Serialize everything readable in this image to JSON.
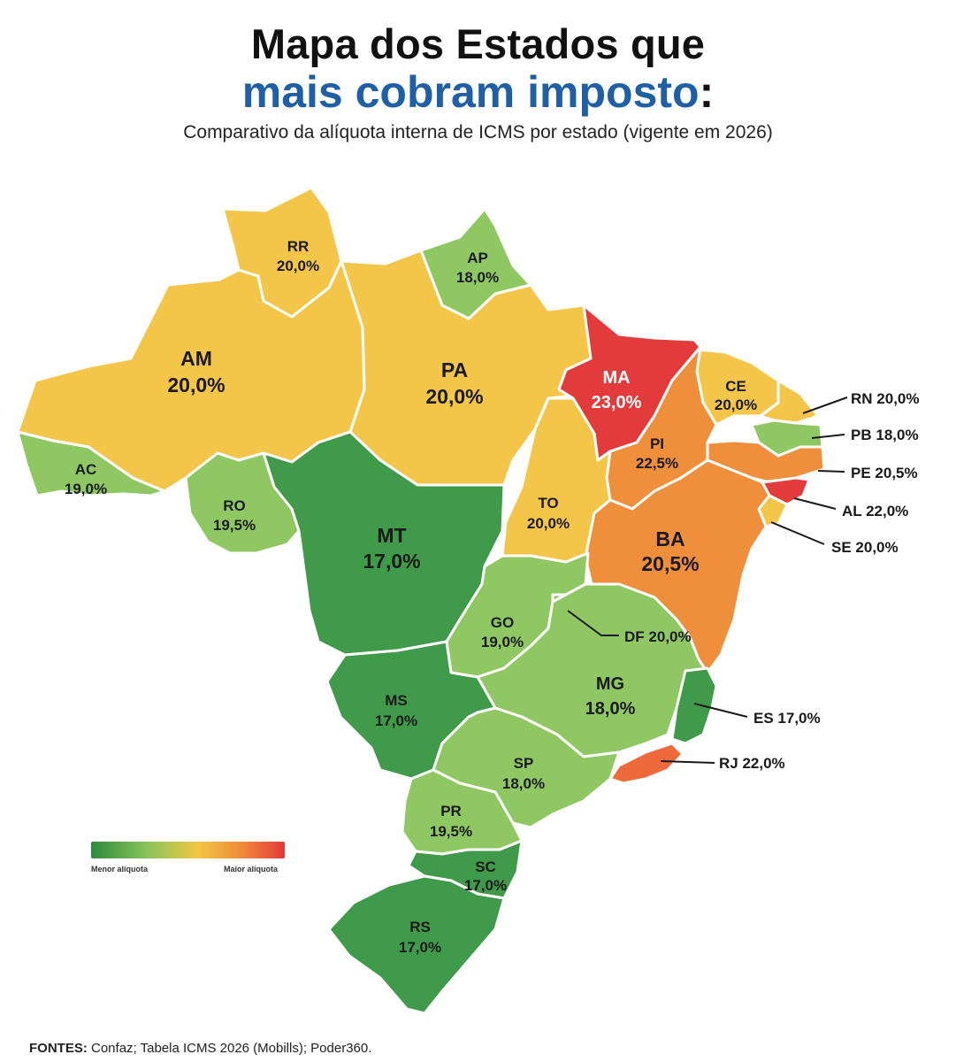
{
  "header": {
    "title_line1": "Mapa dos Estados que",
    "title_line2": "mais cobram imposto",
    "title_colon": ":",
    "subtitle": "Comparativo da alíquota interna de ICMS por estado (vigente em 2026)"
  },
  "colors": {
    "green_dark": "#3f9a49",
    "green_light": "#8fc862",
    "yellow": "#f3c64a",
    "orange": "#ef8e3b",
    "red": "#e33b3b",
    "title_blue": "#1f5fa6"
  },
  "states": [
    {
      "code": "AM",
      "rate": "20,0%"
    },
    {
      "code": "RR",
      "rate": "20,0%"
    },
    {
      "code": "AP",
      "rate": "18,0%"
    },
    {
      "code": "PA",
      "rate": "20,0%"
    },
    {
      "code": "MA",
      "rate": "23,0%"
    },
    {
      "code": "CE",
      "rate": "20,0%"
    },
    {
      "code": "PI",
      "rate": "22,5%"
    },
    {
      "code": "AC",
      "rate": "19,0%"
    },
    {
      "code": "RO",
      "rate": "19,5%"
    },
    {
      "code": "MT",
      "rate": "17,0%"
    },
    {
      "code": "TO",
      "rate": "20,0%"
    },
    {
      "code": "BA",
      "rate": "20,5%"
    },
    {
      "code": "GO",
      "rate": "19,0%"
    },
    {
      "code": "MG",
      "rate": "18,0%"
    },
    {
      "code": "MS",
      "rate": "17,0%"
    },
    {
      "code": "SP",
      "rate": "18,0%"
    },
    {
      "code": "PR",
      "rate": "19,5%"
    },
    {
      "code": "SC",
      "rate": "17,0%"
    },
    {
      "code": "RS",
      "rate": "17,0%"
    }
  ],
  "callouts": [
    {
      "code": "RN",
      "rate": "20,0%"
    },
    {
      "code": "PB",
      "rate": "18,0%"
    },
    {
      "code": "PE",
      "rate": "20,5%"
    },
    {
      "code": "AL",
      "rate": "22,0%"
    },
    {
      "code": "SE",
      "rate": "20,0%"
    },
    {
      "code": "DF",
      "rate": "20,0%"
    },
    {
      "code": "ES",
      "rate": "17,0%"
    },
    {
      "code": "RJ",
      "rate": "22,0%"
    }
  ],
  "legend": {
    "min_label": "Menor alíquota",
    "max_label": "Maior alíquota"
  },
  "footer": {
    "sources_label": "FONTES:",
    "sources_text": " Confaz; Tabela ICMS 2026 (Mobills); Poder360."
  }
}
